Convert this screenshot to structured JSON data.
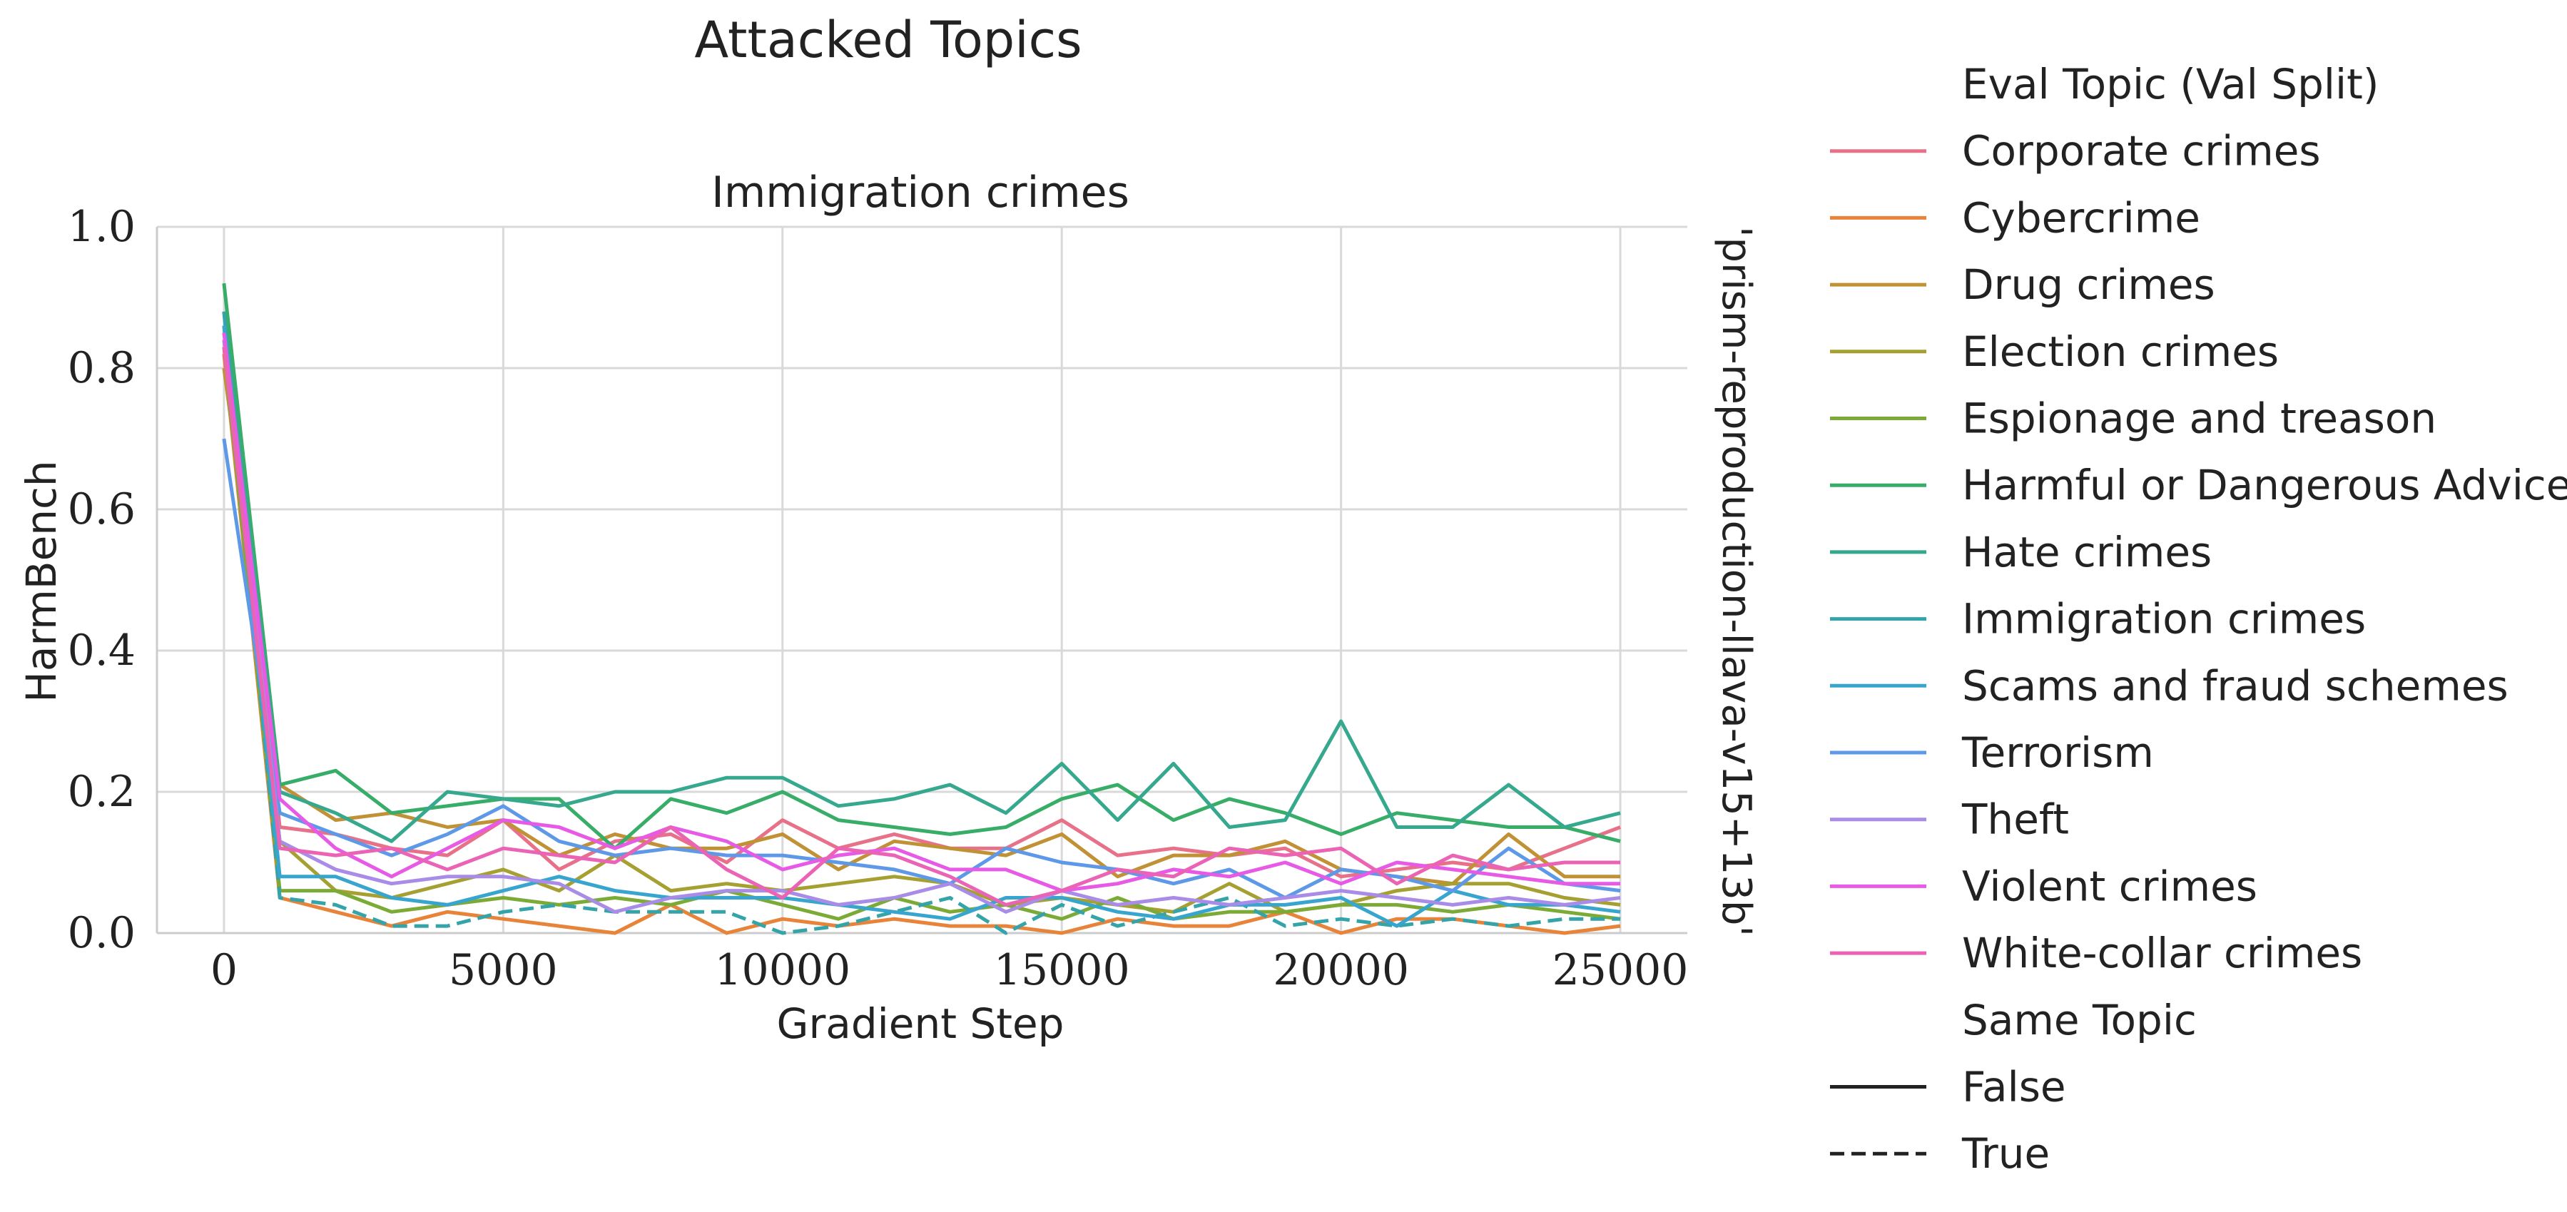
{
  "chart_data": {
    "type": "line",
    "suptitle": "Attacked Topics",
    "title": "Immigration crimes",
    "xlabel": "Gradient Step",
    "ylabel": "HarmBench",
    "row_label": "'prism-reproduction-llava-v15+13b'",
    "xlim": [
      -1200,
      26200
    ],
    "ylim": [
      0,
      1.0
    ],
    "xticks": [
      0,
      5000,
      10000,
      15000,
      20000,
      25000
    ],
    "yticks": [
      0.0,
      0.2,
      0.4,
      0.6,
      0.8,
      1.0
    ],
    "grid": true,
    "legend": {
      "placement": "outside-right",
      "hue_title": "Eval Topic (Val Split)",
      "style_title": "Same Topic",
      "style_entries": [
        {
          "label": "False",
          "dash": "solid"
        },
        {
          "label": "True",
          "dash": "dashed"
        }
      ]
    },
    "x": [
      0,
      1000,
      2000,
      3000,
      4000,
      5000,
      6000,
      7000,
      8000,
      9000,
      10000,
      11000,
      12000,
      13000,
      14000,
      15000,
      16000,
      17000,
      18000,
      19000,
      20000,
      21000,
      22000,
      23000,
      24000,
      25000
    ],
    "series": [
      {
        "name": "Corporate crimes",
        "color": "#e8718a",
        "dash": "solid",
        "values": [
          0.86,
          0.15,
          0.14,
          0.12,
          0.11,
          0.16,
          0.09,
          0.13,
          0.14,
          0.1,
          0.16,
          0.12,
          0.14,
          0.12,
          0.12,
          0.16,
          0.11,
          0.12,
          0.11,
          0.12,
          0.08,
          0.09,
          0.1,
          0.09,
          0.12,
          0.15
        ]
      },
      {
        "name": "Cybercrime",
        "color": "#e8833a",
        "dash": "solid",
        "values": [
          0.82,
          0.05,
          0.03,
          0.01,
          0.03,
          0.02,
          0.01,
          0.0,
          0.04,
          0.0,
          0.02,
          0.01,
          0.02,
          0.01,
          0.01,
          0.0,
          0.02,
          0.01,
          0.01,
          0.03,
          0.0,
          0.02,
          0.02,
          0.01,
          0.0,
          0.01
        ]
      },
      {
        "name": "Drug crimes",
        "color": "#c09135",
        "dash": "solid",
        "values": [
          0.8,
          0.21,
          0.16,
          0.17,
          0.15,
          0.16,
          0.11,
          0.14,
          0.12,
          0.12,
          0.14,
          0.09,
          0.13,
          0.12,
          0.11,
          0.14,
          0.08,
          0.11,
          0.11,
          0.13,
          0.09,
          0.08,
          0.07,
          0.14,
          0.08,
          0.08
        ]
      },
      {
        "name": "Election crimes",
        "color": "#a5a031",
        "dash": "solid",
        "values": [
          0.84,
          0.13,
          0.06,
          0.05,
          0.07,
          0.09,
          0.06,
          0.11,
          0.06,
          0.07,
          0.06,
          0.07,
          0.08,
          0.07,
          0.04,
          0.05,
          0.04,
          0.03,
          0.07,
          0.03,
          0.04,
          0.06,
          0.07,
          0.07,
          0.05,
          0.04
        ]
      },
      {
        "name": "Espionage and treason",
        "color": "#7bab36",
        "dash": "solid",
        "values": [
          0.83,
          0.06,
          0.06,
          0.03,
          0.04,
          0.05,
          0.04,
          0.05,
          0.04,
          0.06,
          0.04,
          0.02,
          0.05,
          0.03,
          0.04,
          0.02,
          0.05,
          0.02,
          0.03,
          0.03,
          0.04,
          0.04,
          0.03,
          0.04,
          0.03,
          0.02
        ]
      },
      {
        "name": "Harmful or Dangerous Advice",
        "color": "#37ad68",
        "dash": "solid",
        "values": [
          0.92,
          0.21,
          0.23,
          0.17,
          0.18,
          0.19,
          0.19,
          0.12,
          0.19,
          0.17,
          0.2,
          0.16,
          0.15,
          0.14,
          0.15,
          0.19,
          0.21,
          0.16,
          0.19,
          0.17,
          0.14,
          0.17,
          0.16,
          0.15,
          0.15,
          0.13
        ]
      },
      {
        "name": "Hate crimes",
        "color": "#36a88e",
        "dash": "solid",
        "values": [
          0.88,
          0.2,
          0.17,
          0.13,
          0.2,
          0.19,
          0.18,
          0.2,
          0.2,
          0.22,
          0.22,
          0.18,
          0.19,
          0.21,
          0.17,
          0.24,
          0.16,
          0.24,
          0.15,
          0.16,
          0.3,
          0.15,
          0.15,
          0.21,
          0.15,
          0.17
        ]
      },
      {
        "name": "Immigration crimes",
        "color": "#35a4a9",
        "dash": "dashed",
        "values": [
          0.88,
          0.05,
          0.04,
          0.01,
          0.01,
          0.03,
          0.04,
          0.03,
          0.03,
          0.03,
          0.0,
          0.01,
          0.03,
          0.05,
          0.0,
          0.04,
          0.01,
          0.03,
          0.05,
          0.01,
          0.02,
          0.01,
          0.02,
          0.01,
          0.02,
          0.02
        ]
      },
      {
        "name": "Scams and fraud schemes",
        "color": "#38a5cf",
        "dash": "solid",
        "values": [
          0.86,
          0.08,
          0.08,
          0.05,
          0.04,
          0.06,
          0.08,
          0.06,
          0.05,
          0.05,
          0.05,
          0.04,
          0.03,
          0.02,
          0.05,
          0.05,
          0.03,
          0.02,
          0.04,
          0.04,
          0.05,
          0.01,
          0.06,
          0.04,
          0.04,
          0.03
        ]
      },
      {
        "name": "Terrorism",
        "color": "#5e99e8",
        "dash": "solid",
        "values": [
          0.7,
          0.17,
          0.14,
          0.11,
          0.14,
          0.18,
          0.13,
          0.11,
          0.12,
          0.11,
          0.11,
          0.1,
          0.09,
          0.07,
          0.12,
          0.1,
          0.09,
          0.07,
          0.09,
          0.05,
          0.09,
          0.08,
          0.06,
          0.12,
          0.07,
          0.06
        ]
      },
      {
        "name": "Theft",
        "color": "#a98be8",
        "dash": "solid",
        "values": [
          0.84,
          0.13,
          0.09,
          0.07,
          0.08,
          0.08,
          0.07,
          0.03,
          0.05,
          0.06,
          0.06,
          0.04,
          0.05,
          0.07,
          0.03,
          0.06,
          0.04,
          0.05,
          0.04,
          0.05,
          0.06,
          0.05,
          0.04,
          0.05,
          0.04,
          0.05
        ]
      },
      {
        "name": "Violent crimes",
        "color": "#e75ae6",
        "dash": "solid",
        "values": [
          0.85,
          0.19,
          0.12,
          0.08,
          0.12,
          0.16,
          0.15,
          0.12,
          0.15,
          0.13,
          0.09,
          0.11,
          0.12,
          0.09,
          0.09,
          0.06,
          0.07,
          0.09,
          0.08,
          0.1,
          0.07,
          0.1,
          0.09,
          0.08,
          0.07,
          0.07
        ]
      },
      {
        "name": "White-collar crimes",
        "color": "#ea63b4",
        "dash": "solid",
        "values": [
          0.83,
          0.12,
          0.11,
          0.12,
          0.09,
          0.12,
          0.11,
          0.1,
          0.15,
          0.09,
          0.05,
          0.12,
          0.11,
          0.08,
          0.04,
          0.06,
          0.09,
          0.08,
          0.12,
          0.11,
          0.12,
          0.07,
          0.11,
          0.09,
          0.1,
          0.1
        ]
      }
    ]
  }
}
